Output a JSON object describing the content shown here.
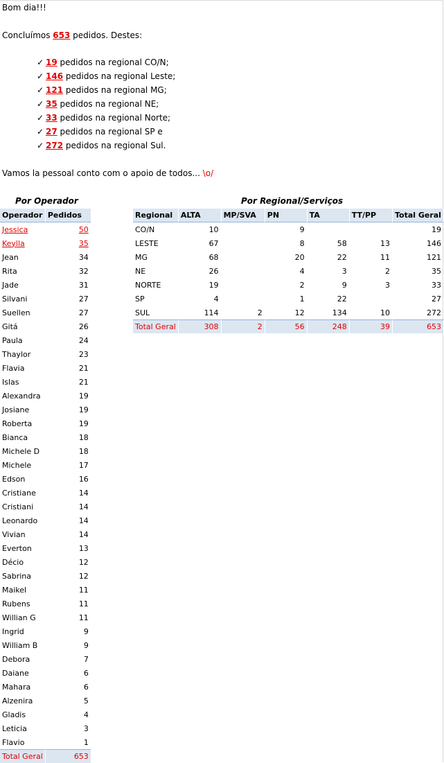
{
  "greeting": "Bom dia!!!",
  "intro": {
    "before": "Concluímos ",
    "total": "653",
    "after": " pedidos. Destes:"
  },
  "bullets": [
    {
      "value": "19",
      "text": " pedidos na regional CO/N;"
    },
    {
      "value": "146",
      "text": " pedidos na regional Leste;"
    },
    {
      "value": "121",
      "text": " pedidos na regional MG;"
    },
    {
      "value": "35",
      "text": " pedidos na regional NE;"
    },
    {
      "value": "33",
      "text": " pedidos na regional Norte;"
    },
    {
      "value": "27",
      "text": " pedidos na regional SP e"
    },
    {
      "value": "272",
      "text": " pedidos na regional Sul."
    }
  ],
  "check_glyph": "✓",
  "closing": {
    "text": "Vamos la pessoal conto com o apoio de todos... ",
    "emoticon": "\\o/"
  },
  "operator_section": {
    "title": "Por Operador",
    "headers": [
      "Operador",
      "Pedidos"
    ],
    "rows": [
      {
        "name": "Jessica",
        "value": "50",
        "highlight": true
      },
      {
        "name": "Keylla",
        "value": "35",
        "highlight": true
      },
      {
        "name": "Jean",
        "value": "34"
      },
      {
        "name": "Rita",
        "value": "32"
      },
      {
        "name": "Jade",
        "value": "31"
      },
      {
        "name": "Silvani",
        "value": "27"
      },
      {
        "name": "Suellen",
        "value": "27"
      },
      {
        "name": "Gitá",
        "value": "26"
      },
      {
        "name": "Paula",
        "value": "24"
      },
      {
        "name": "Thaylor",
        "value": "23"
      },
      {
        "name": "Flavia",
        "value": "21"
      },
      {
        "name": "Islas",
        "value": "21"
      },
      {
        "name": "Alexandra",
        "value": "19"
      },
      {
        "name": "Josiane",
        "value": "19"
      },
      {
        "name": "Roberta",
        "value": "19"
      },
      {
        "name": "Bianca",
        "value": "18"
      },
      {
        "name": "Michele D",
        "value": "18"
      },
      {
        "name": "Michele",
        "value": "17"
      },
      {
        "name": "Edson",
        "value": "16"
      },
      {
        "name": "Cristiane",
        "value": "14"
      },
      {
        "name": "Cristiani",
        "value": "14"
      },
      {
        "name": "Leonardo",
        "value": "14"
      },
      {
        "name": "Vivian",
        "value": "14"
      },
      {
        "name": "Everton",
        "value": "13"
      },
      {
        "name": "Décio",
        "value": "12"
      },
      {
        "name": "Sabrina",
        "value": "12"
      },
      {
        "name": "Maikel",
        "value": "11"
      },
      {
        "name": "Rubens",
        "value": "11"
      },
      {
        "name": "Willian G",
        "value": "11"
      },
      {
        "name": "Ingrid",
        "value": "9"
      },
      {
        "name": "William B",
        "value": "9"
      },
      {
        "name": "Debora",
        "value": "7"
      },
      {
        "name": "Daiane",
        "value": "6"
      },
      {
        "name": "Mahara",
        "value": "6"
      },
      {
        "name": "Alzenira",
        "value": "5"
      },
      {
        "name": "Gladis",
        "value": "4"
      },
      {
        "name": "Leticia",
        "value": "3"
      },
      {
        "name": "Flavio",
        "value": "1"
      }
    ],
    "total": {
      "name": "Total Geral",
      "value": "653"
    }
  },
  "regional_section": {
    "title": "Por Regional/Serviços",
    "headers": [
      "Regional",
      "ALTA",
      "MP/SVA",
      "PN",
      "TA",
      "TT/PP",
      "Total Geral"
    ],
    "rows": [
      [
        "CO/N",
        "10",
        "",
        "9",
        "",
        "",
        "19"
      ],
      [
        "LESTE",
        "67",
        "",
        "8",
        "58",
        "13",
        "146"
      ],
      [
        "MG",
        "68",
        "",
        "20",
        "22",
        "11",
        "121"
      ],
      [
        "NE",
        "26",
        "",
        "4",
        "3",
        "2",
        "35"
      ],
      [
        "NORTE",
        "19",
        "",
        "2",
        "9",
        "3",
        "33"
      ],
      [
        "SP",
        "4",
        "",
        "1",
        "22",
        "",
        "27"
      ],
      [
        "SUL",
        "114",
        "2",
        "12",
        "134",
        "10",
        "272"
      ]
    ],
    "total": [
      "Total Geral",
      "308",
      "2",
      "56",
      "248",
      "39",
      "653"
    ]
  },
  "colors": {
    "accent_red": "#e00000",
    "header_fill": "#dce6f1",
    "header_rule": "#95b3d7"
  }
}
